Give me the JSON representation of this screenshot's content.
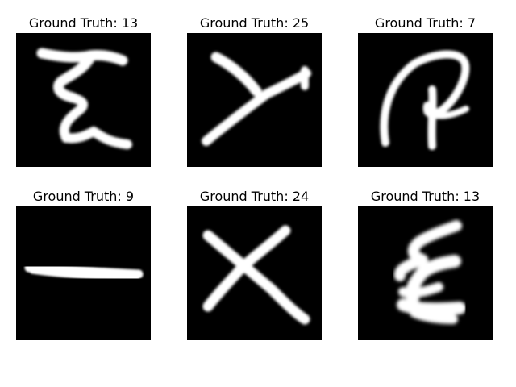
{
  "panels": [
    {
      "title": "Ground Truth: 13",
      "glyph": "zigzag-letter-icon"
    },
    {
      "title": "Ground Truth: 25",
      "glyph": "y-letter-icon"
    },
    {
      "title": "Ground Truth: 7",
      "glyph": "loop-letter-icon"
    },
    {
      "title": "Ground Truth: 9",
      "glyph": "horizontal-stroke-icon"
    },
    {
      "title": "Ground Truth: 24",
      "glyph": "x-letter-icon"
    },
    {
      "title": "Ground Truth: 13",
      "glyph": "blob-letter-icon"
    }
  ],
  "colors": {
    "panel_background": "#000000",
    "stroke": "#ffffff",
    "page_background": "#ffffff"
  }
}
